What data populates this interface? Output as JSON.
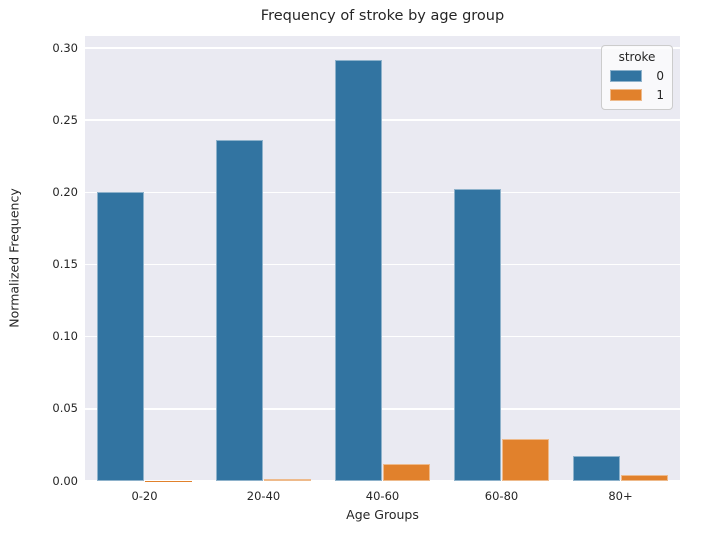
{
  "figure": {
    "background": "#ffffff",
    "axes_background": "#eaeaf2",
    "grid_color": "#ffffff",
    "text_color": "#262626"
  },
  "chart_data": {
    "type": "bar",
    "title": "Frequency of stroke by age group",
    "xlabel": "Age Groups",
    "ylabel": "Normalized Frequency",
    "categories": [
      "0-20",
      "20-40",
      "40-60",
      "60-80",
      "80+"
    ],
    "series": [
      {
        "name": "0",
        "color": "#3274a1",
        "values": [
          0.2,
          0.236,
          0.292,
          0.202,
          0.017
        ]
      },
      {
        "name": "1",
        "color": "#e1812c",
        "values": [
          0.0003,
          0.001,
          0.012,
          0.029,
          0.004
        ]
      }
    ],
    "legend_title": "stroke",
    "legend_position": "upper right",
    "ylim": [
      0,
      0.3083
    ],
    "yticks": [
      0.0,
      0.05,
      0.1,
      0.15,
      0.2,
      0.25,
      0.3
    ],
    "ytick_labels": [
      "0.00",
      "0.05",
      "0.10",
      "0.15",
      "0.20",
      "0.25",
      "0.30"
    ],
    "grid": true
  }
}
